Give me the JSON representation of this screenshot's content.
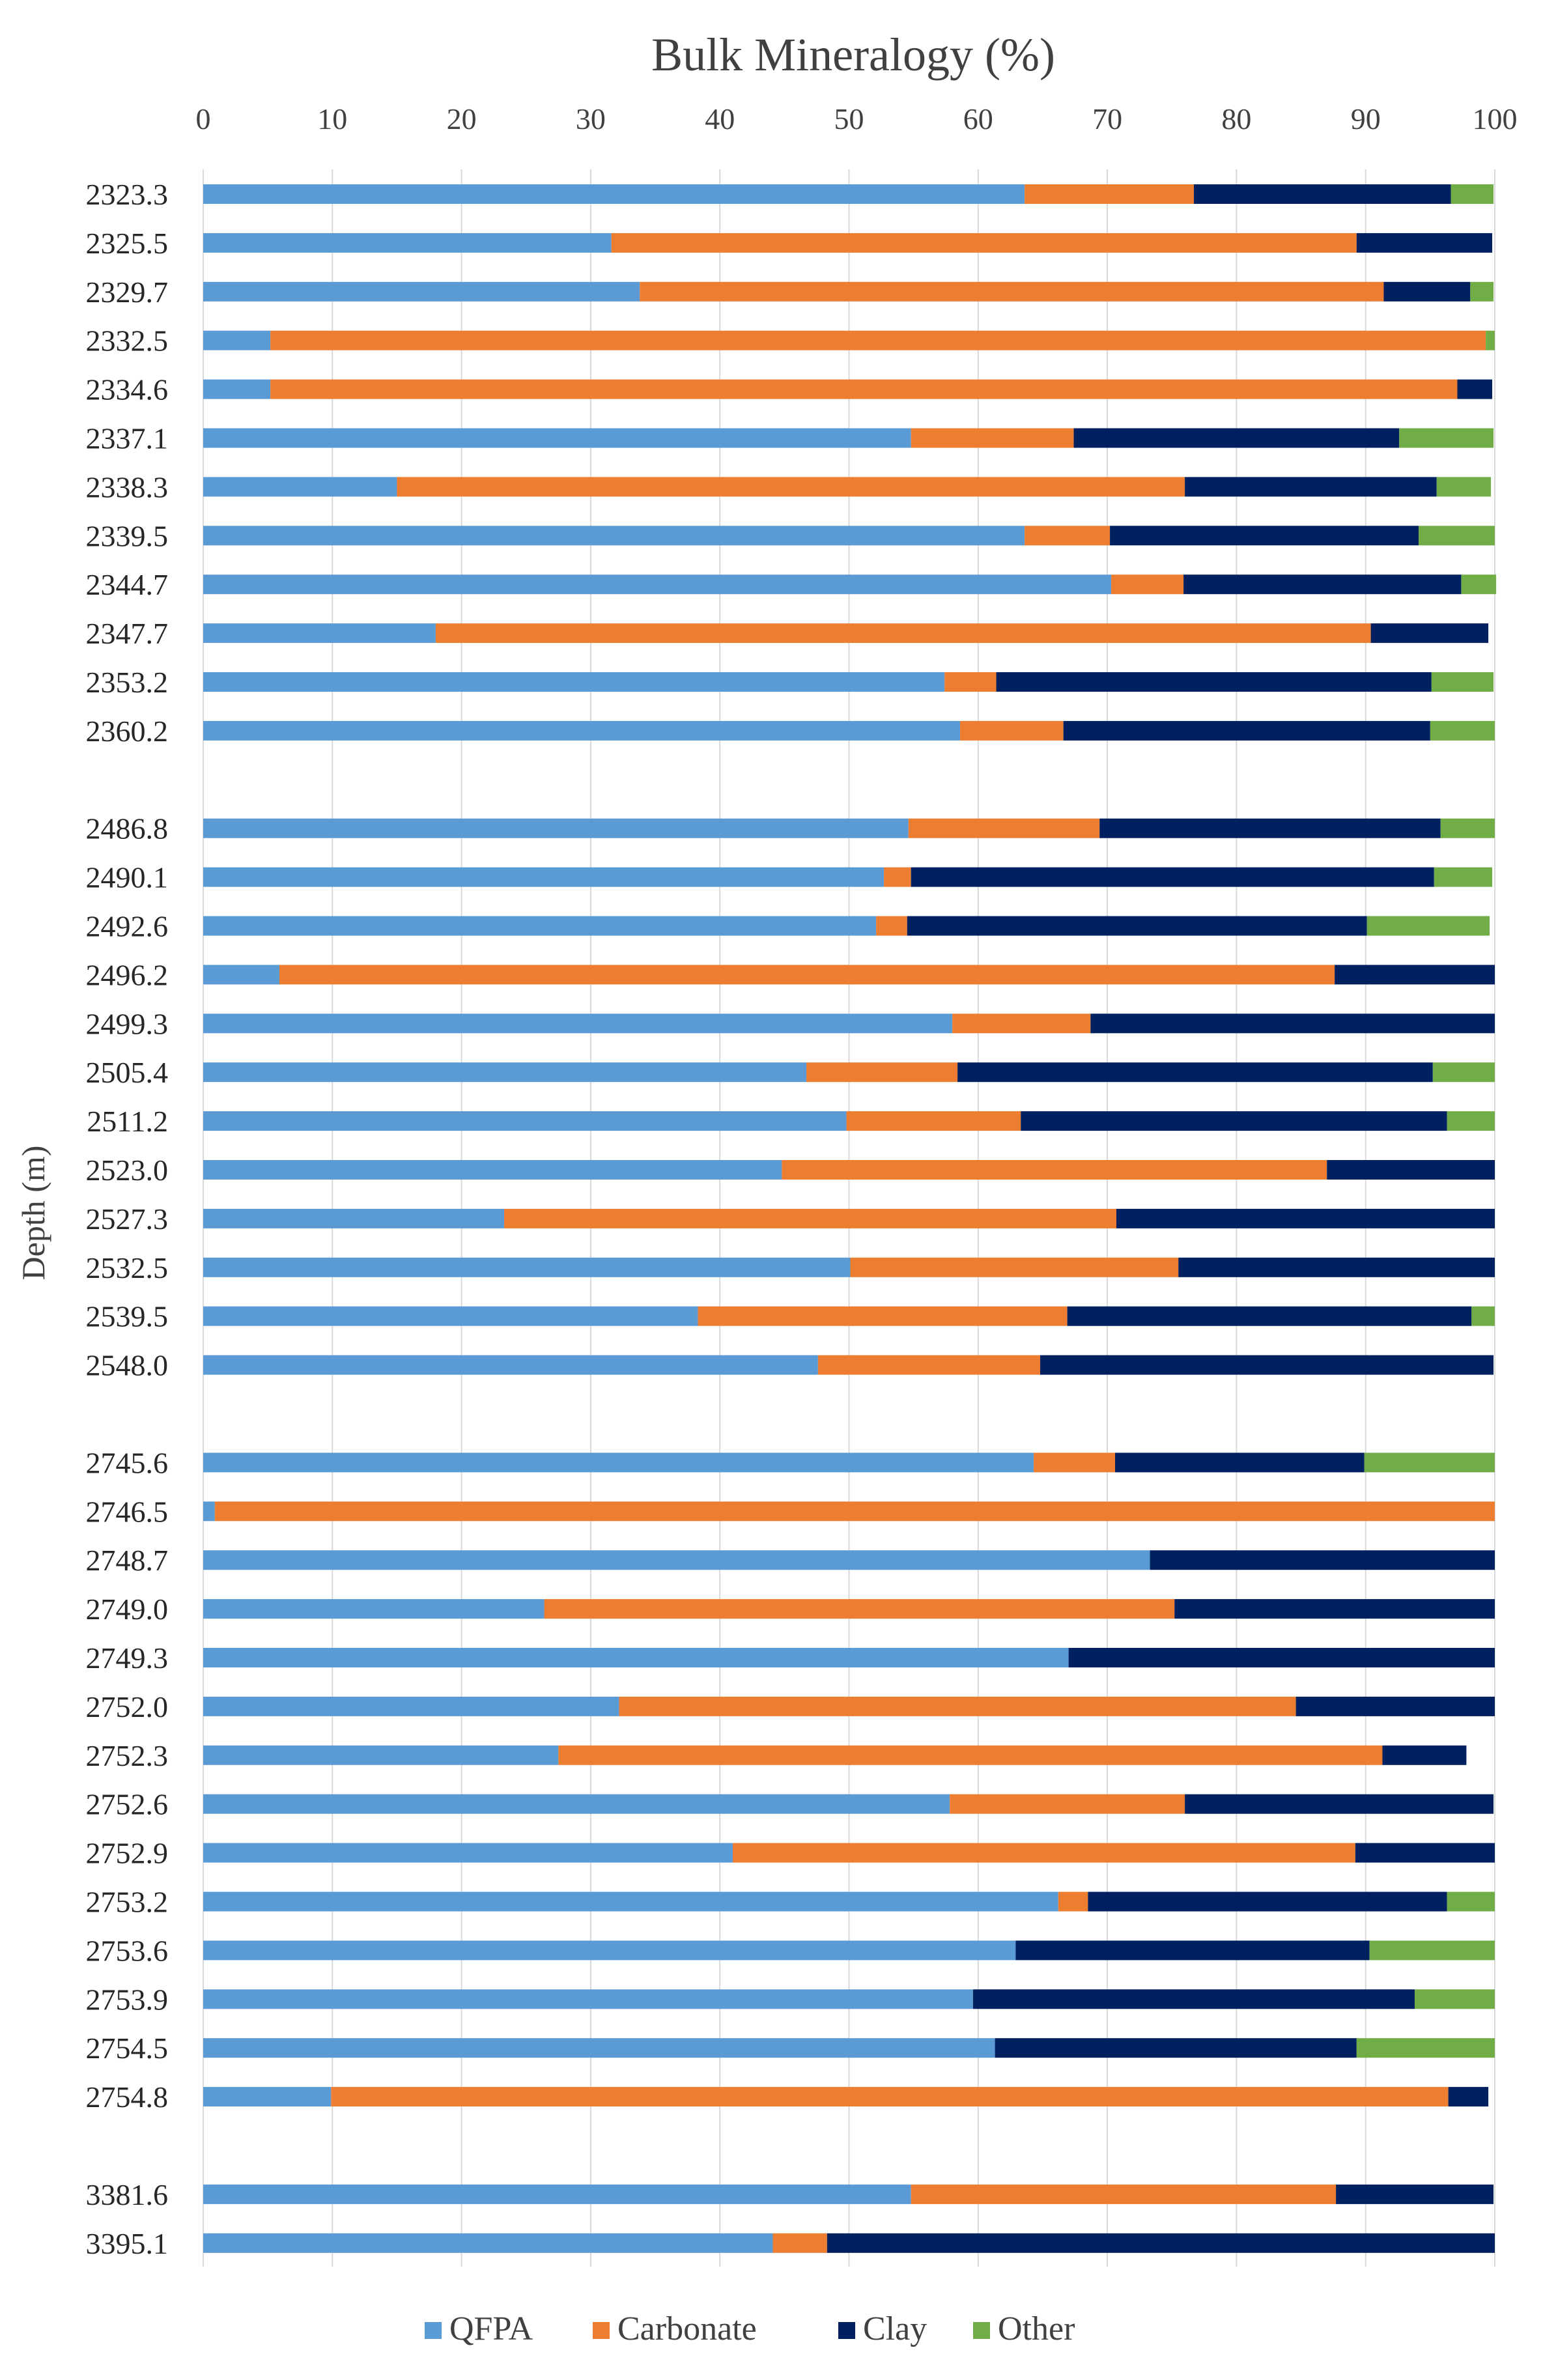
{
  "chart_data": {
    "type": "bar",
    "orientation": "horizontal",
    "stacked": true,
    "title": "Bulk Mineralogy (%)",
    "xlabel": "",
    "ylabel": "Depth (m)",
    "xlim": [
      0,
      100
    ],
    "x_ticks": [
      "0",
      "10",
      "20",
      "30",
      "40",
      "50",
      "60",
      "70",
      "80",
      "90",
      "100"
    ],
    "grid": "vertical",
    "legend_position": "bottom",
    "colors": {
      "QFPA": "#5B9BD5",
      "Carbonate": "#ED7D31",
      "Clay": "#002060",
      "Other": "#70AD47",
      "grid": "#D9D9D9",
      "text": "#404040"
    },
    "groups": [
      {
        "categories": [
          "2323.3",
          "2325.5",
          "2329.7",
          "2332.5",
          "2334.6",
          "2337.1",
          "2338.3",
          "2339.5",
          "2344.7",
          "2347.7",
          "2353.2",
          "2360.2"
        ],
        "rows": [
          [
            63.6,
            13.1,
            19.9,
            3.3
          ],
          [
            31.6,
            57.7,
            10.5,
            0
          ],
          [
            33.8,
            57.6,
            6.7,
            1.8
          ],
          [
            5.2,
            94.1,
            0,
            0.7
          ],
          [
            5.2,
            91.9,
            2.7,
            0
          ],
          [
            54.8,
            12.6,
            25.2,
            7.3
          ],
          [
            15.0,
            61.0,
            19.5,
            4.2
          ],
          [
            63.6,
            6.6,
            23.9,
            5.9
          ],
          [
            70.3,
            5.6,
            21.5,
            2.7
          ],
          [
            18.0,
            72.4,
            9.1,
            0
          ],
          [
            57.4,
            4.0,
            33.7,
            4.8
          ],
          [
            58.6,
            8.0,
            28.4,
            5.0
          ]
        ]
      },
      {
        "categories": [
          "2486.8",
          "2490.1",
          "2492.6",
          "2496.2",
          "2499.3",
          "2505.4",
          "2511.2",
          "2523.0",
          "2527.3",
          "2532.5",
          "2539.5",
          "2548.0"
        ],
        "rows": [
          [
            54.6,
            14.8,
            26.4,
            4.2
          ],
          [
            52.7,
            2.1,
            40.5,
            4.5
          ],
          [
            52.1,
            2.4,
            35.6,
            9.5
          ],
          [
            5.9,
            81.7,
            12.4,
            0
          ],
          [
            58.0,
            10.7,
            31.3,
            0
          ],
          [
            46.7,
            11.7,
            36.8,
            4.8
          ],
          [
            49.8,
            13.5,
            33.0,
            3.7
          ],
          [
            44.8,
            42.2,
            13.0,
            0
          ],
          [
            23.3,
            47.4,
            29.3,
            0
          ],
          [
            50.1,
            25.4,
            24.5,
            0
          ],
          [
            38.3,
            28.6,
            31.3,
            1.8
          ],
          [
            47.6,
            17.2,
            35.1,
            0
          ]
        ]
      },
      {
        "categories": [
          "2745.6",
          "2746.5",
          "2748.7",
          "2749.0",
          "2749.3",
          "2752.0",
          "2752.3",
          "2752.6",
          "2752.9",
          "2753.2",
          "2753.6",
          "2753.9",
          "2754.5",
          "2754.8"
        ],
        "rows": [
          [
            64.3,
            6.3,
            19.3,
            10.1
          ],
          [
            0.9,
            99.1,
            0,
            0
          ],
          [
            73.3,
            0,
            26.7,
            0
          ],
          [
            26.4,
            48.8,
            24.8,
            0
          ],
          [
            67.0,
            0,
            33.0,
            0
          ],
          [
            32.2,
            52.4,
            15.4,
            0
          ],
          [
            27.5,
            63.8,
            6.5,
            0
          ],
          [
            57.8,
            18.2,
            23.9,
            0
          ],
          [
            41.0,
            48.2,
            10.8,
            0
          ],
          [
            66.2,
            2.3,
            27.8,
            3.7
          ],
          [
            62.9,
            0,
            27.4,
            9.7
          ],
          [
            59.6,
            0,
            34.2,
            6.2
          ],
          [
            61.3,
            0,
            28.0,
            10.7
          ],
          [
            9.9,
            86.5,
            3.1,
            0
          ]
        ]
      },
      {
        "categories": [
          "3381.6",
          "3395.1"
        ],
        "rows": [
          [
            54.8,
            32.9,
            12.2,
            0
          ],
          [
            44.1,
            4.2,
            51.7,
            0
          ]
        ]
      }
    ],
    "series": [
      {
        "name": "QFPA"
      },
      {
        "name": "Carbonate"
      },
      {
        "name": "Clay"
      },
      {
        "name": "Other"
      }
    ]
  }
}
